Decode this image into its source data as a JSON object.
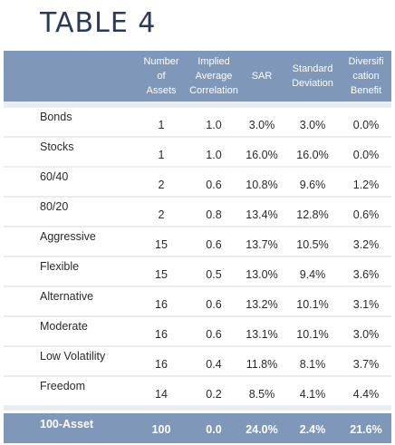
{
  "title": "TABLE 4",
  "columns": [
    "Number of Assets",
    "Implied Average Correlation",
    "SAR",
    "Standard Deviation",
    "Diversification Benefit"
  ],
  "header_lines": {
    "c1": "Number\nof\nAssets",
    "c2": "Implied\nAverage\nCorrelation",
    "c3": "SAR",
    "c4": "Standard\nDeviation",
    "c5": "Diversifi\ncation\nBenefit"
  },
  "rows": [
    {
      "name": "Bonds",
      "assets": "1",
      "corr": "1.0",
      "sar": "3.0%",
      "sd": "3.0%",
      "div": "0.0%"
    },
    {
      "name": "Stocks",
      "assets": "1",
      "corr": "1.0",
      "sar": "16.0%",
      "sd": "16.0%",
      "div": "0.0%"
    },
    {
      "name": "60/40",
      "assets": "2",
      "corr": "0.6",
      "sar": "10.8%",
      "sd": "9.6%",
      "div": "1.2%"
    },
    {
      "name": "80/20",
      "assets": "2",
      "corr": "0.8",
      "sar": "13.4%",
      "sd": "12.8%",
      "div": "0.6%"
    },
    {
      "name": "Aggressive",
      "assets": "15",
      "corr": "0.6",
      "sar": "13.7%",
      "sd": "10.5%",
      "div": "3.2%"
    },
    {
      "name": "Flexible",
      "assets": "15",
      "corr": "0.5",
      "sar": "13.0%",
      "sd": "9.4%",
      "div": "3.6%"
    },
    {
      "name": "Alternative",
      "assets": "16",
      "corr": "0.6",
      "sar": "13.2%",
      "sd": "10.1%",
      "div": "3.1%"
    },
    {
      "name": "Moderate",
      "assets": "16",
      "corr": "0.6",
      "sar": "13.1%",
      "sd": "10.1%",
      "div": "3.0%"
    },
    {
      "name": "Low Volatility",
      "assets": "16",
      "corr": "0.4",
      "sar": "11.8%",
      "sd": "8.1%",
      "div": "3.7%"
    },
    {
      "name": "Freedom",
      "assets": "14",
      "corr": "0.2",
      "sar": "8.5%",
      "sd": "4.1%",
      "div": "4.4%"
    }
  ],
  "footer": {
    "name": "100-Asset",
    "assets": "100",
    "corr": "0.0",
    "sar": "24.0%",
    "sd": "2.4%",
    "div": "21.6%"
  },
  "colors": {
    "title": "#2b3a5a",
    "header_bg": "#7f97b9",
    "body_bg": "#e9ecf1"
  }
}
